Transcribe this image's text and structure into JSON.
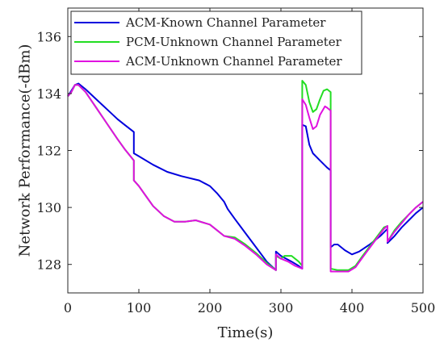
{
  "chart_data": {
    "type": "line",
    "xlabel": "Time(s)",
    "ylabel": "Network Performance(-dBm)",
    "xlim": [
      0,
      500
    ],
    "ylim": [
      127,
      137
    ],
    "xticks": [
      0,
      100,
      200,
      300,
      400,
      500
    ],
    "yticks": [
      128,
      130,
      132,
      134,
      136
    ],
    "grid": false,
    "legend_position": "top-left",
    "series": [
      {
        "name": "ACM-Known Channel Parameter",
        "color": "#0000dd",
        "points": [
          [
            0,
            133.9
          ],
          [
            5,
            134.1
          ],
          [
            10,
            134.3
          ],
          [
            15,
            134.35
          ],
          [
            25,
            134.15
          ],
          [
            40,
            133.8
          ],
          [
            55,
            133.45
          ],
          [
            70,
            133.1
          ],
          [
            80,
            132.9
          ],
          [
            93,
            132.65
          ],
          [
            93,
            131.9
          ],
          [
            100,
            131.8
          ],
          [
            120,
            131.5
          ],
          [
            140,
            131.25
          ],
          [
            160,
            131.1
          ],
          [
            185,
            130.95
          ],
          [
            200,
            130.75
          ],
          [
            210,
            130.5
          ],
          [
            220,
            130.2
          ],
          [
            225,
            129.95
          ],
          [
            235,
            129.6
          ],
          [
            250,
            129.1
          ],
          [
            265,
            128.6
          ],
          [
            280,
            128.1
          ],
          [
            293,
            127.8
          ],
          [
            293,
            128.45
          ],
          [
            300,
            128.3
          ],
          [
            315,
            128.1
          ],
          [
            325,
            127.95
          ],
          [
            330,
            127.85
          ],
          [
            330,
            132.9
          ],
          [
            335,
            132.85
          ],
          [
            340,
            132.2
          ],
          [
            345,
            131.9
          ],
          [
            355,
            131.65
          ],
          [
            365,
            131.4
          ],
          [
            370,
            131.3
          ],
          [
            370,
            128.6
          ],
          [
            375,
            128.7
          ],
          [
            380,
            128.7
          ],
          [
            390,
            128.5
          ],
          [
            400,
            128.35
          ],
          [
            410,
            128.45
          ],
          [
            425,
            128.7
          ],
          [
            440,
            129.0
          ],
          [
            450,
            129.25
          ],
          [
            450,
            128.75
          ],
          [
            460,
            129.0
          ],
          [
            470,
            129.3
          ],
          [
            480,
            129.55
          ],
          [
            490,
            129.8
          ],
          [
            500,
            130.0
          ]
        ]
      },
      {
        "name": "PCM-Unknown Channel Parameter",
        "color": "#22dd22",
        "points": [
          [
            0,
            133.9
          ],
          [
            5,
            134.05
          ],
          [
            10,
            134.3
          ],
          [
            15,
            134.3
          ],
          [
            25,
            134.05
          ],
          [
            40,
            133.5
          ],
          [
            55,
            132.95
          ],
          [
            70,
            132.4
          ],
          [
            80,
            132.05
          ],
          [
            93,
            131.65
          ],
          [
            93,
            130.95
          ],
          [
            100,
            130.75
          ],
          [
            110,
            130.4
          ],
          [
            120,
            130.05
          ],
          [
            135,
            129.7
          ],
          [
            150,
            129.5
          ],
          [
            165,
            129.5
          ],
          [
            180,
            129.55
          ],
          [
            200,
            129.4
          ],
          [
            210,
            129.2
          ],
          [
            220,
            129.0
          ],
          [
            235,
            128.95
          ],
          [
            250,
            128.7
          ],
          [
            265,
            128.4
          ],
          [
            280,
            128.05
          ],
          [
            293,
            127.8
          ],
          [
            293,
            128.3
          ],
          [
            300,
            128.2
          ],
          [
            305,
            128.3
          ],
          [
            315,
            128.3
          ],
          [
            325,
            128.1
          ],
          [
            330,
            127.95
          ],
          [
            330,
            134.45
          ],
          [
            335,
            134.3
          ],
          [
            340,
            133.7
          ],
          [
            345,
            133.35
          ],
          [
            350,
            133.45
          ],
          [
            355,
            133.8
          ],
          [
            360,
            134.1
          ],
          [
            365,
            134.15
          ],
          [
            370,
            134.05
          ],
          [
            370,
            127.85
          ],
          [
            380,
            127.8
          ],
          [
            395,
            127.8
          ],
          [
            405,
            127.95
          ],
          [
            415,
            128.3
          ],
          [
            430,
            128.8
          ],
          [
            445,
            129.3
          ],
          [
            450,
            129.35
          ],
          [
            450,
            128.8
          ],
          [
            460,
            129.2
          ],
          [
            470,
            129.5
          ],
          [
            480,
            129.75
          ],
          [
            490,
            130.0
          ],
          [
            500,
            130.2
          ]
        ]
      },
      {
        "name": "ACM-Unknown Channel Parameter",
        "color": "#e010e0",
        "points": [
          [
            0,
            133.9
          ],
          [
            5,
            134.05
          ],
          [
            10,
            134.3
          ],
          [
            15,
            134.3
          ],
          [
            25,
            134.05
          ],
          [
            40,
            133.5
          ],
          [
            55,
            132.95
          ],
          [
            70,
            132.4
          ],
          [
            80,
            132.05
          ],
          [
            93,
            131.65
          ],
          [
            93,
            130.95
          ],
          [
            100,
            130.75
          ],
          [
            110,
            130.4
          ],
          [
            120,
            130.05
          ],
          [
            135,
            129.7
          ],
          [
            150,
            129.5
          ],
          [
            165,
            129.5
          ],
          [
            180,
            129.55
          ],
          [
            200,
            129.4
          ],
          [
            210,
            129.2
          ],
          [
            220,
            129.0
          ],
          [
            235,
            128.9
          ],
          [
            250,
            128.65
          ],
          [
            265,
            128.35
          ],
          [
            280,
            128.0
          ],
          [
            293,
            127.8
          ],
          [
            293,
            128.35
          ],
          [
            300,
            128.2
          ],
          [
            310,
            128.1
          ],
          [
            320,
            127.95
          ],
          [
            330,
            127.85
          ],
          [
            330,
            133.8
          ],
          [
            335,
            133.6
          ],
          [
            340,
            133.15
          ],
          [
            345,
            132.75
          ],
          [
            350,
            132.85
          ],
          [
            355,
            133.25
          ],
          [
            362,
            133.55
          ],
          [
            365,
            133.5
          ],
          [
            370,
            133.4
          ],
          [
            370,
            127.75
          ],
          [
            380,
            127.75
          ],
          [
            395,
            127.75
          ],
          [
            405,
            127.9
          ],
          [
            415,
            128.25
          ],
          [
            430,
            128.75
          ],
          [
            445,
            129.25
          ],
          [
            450,
            129.35
          ],
          [
            450,
            128.8
          ],
          [
            460,
            129.15
          ],
          [
            470,
            129.45
          ],
          [
            480,
            129.75
          ],
          [
            490,
            130.0
          ],
          [
            500,
            130.2
          ]
        ]
      }
    ]
  }
}
